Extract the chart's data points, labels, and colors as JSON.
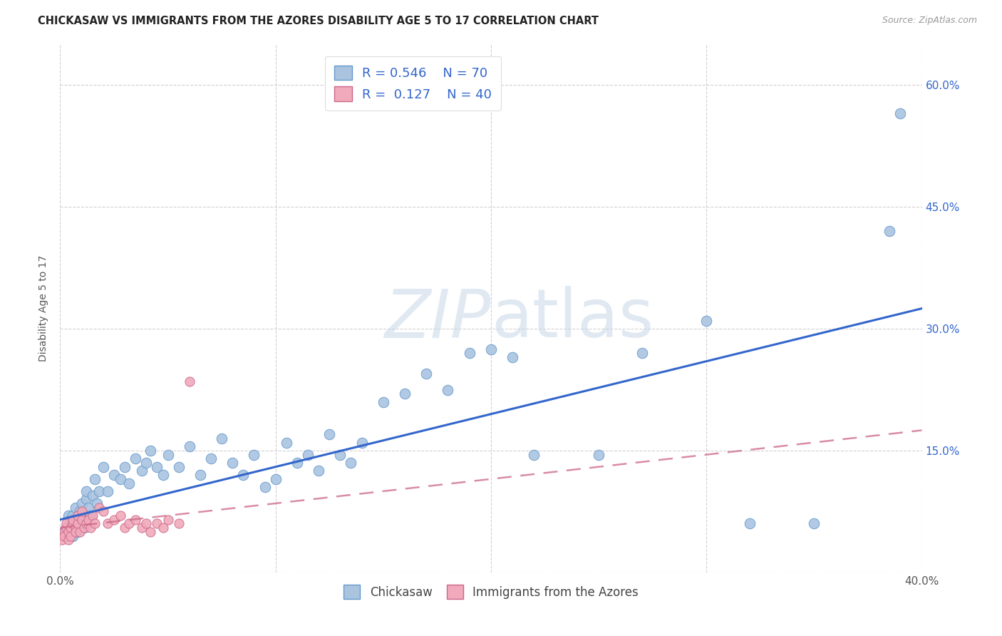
{
  "title": "CHICKASAW VS IMMIGRANTS FROM THE AZORES DISABILITY AGE 5 TO 17 CORRELATION CHART",
  "source": "Source: ZipAtlas.com",
  "ylabel": "Disability Age 5 to 17",
  "xmin": 0.0,
  "xmax": 0.4,
  "ymin": 0.0,
  "ymax": 0.65,
  "yticks": [
    0.0,
    0.15,
    0.3,
    0.45,
    0.6
  ],
  "ytick_labels": [
    "",
    "15.0%",
    "30.0%",
    "45.0%",
    "60.0%"
  ],
  "grid_color": "#cccccc",
  "series": [
    {
      "name": "Chickasaw",
      "color": "#aac4e0",
      "edge_color": "#6699cc",
      "R": 0.546,
      "N": 70,
      "trend_color": "#3366cc",
      "trend_style": "solid",
      "trend_x0": 0.0,
      "trend_y0": 0.065,
      "trend_x1": 0.4,
      "trend_y1": 0.325
    },
    {
      "name": "Immigrants from the Azores",
      "color": "#f0aabb",
      "edge_color": "#cc6688",
      "R": 0.127,
      "N": 40,
      "trend_color": "#cc6688",
      "trend_style": "dashed",
      "trend_x0": 0.0,
      "trend_y0": 0.055,
      "trend_x1": 0.4,
      "trend_y1": 0.175
    }
  ],
  "chickasaw_x": [
    0.002,
    0.003,
    0.004,
    0.004,
    0.005,
    0.005,
    0.006,
    0.006,
    0.007,
    0.007,
    0.008,
    0.009,
    0.009,
    0.01,
    0.01,
    0.011,
    0.012,
    0.012,
    0.013,
    0.014,
    0.015,
    0.016,
    0.017,
    0.018,
    0.02,
    0.022,
    0.025,
    0.028,
    0.03,
    0.032,
    0.035,
    0.038,
    0.04,
    0.042,
    0.045,
    0.048,
    0.05,
    0.055,
    0.06,
    0.065,
    0.07,
    0.075,
    0.08,
    0.085,
    0.09,
    0.095,
    0.1,
    0.105,
    0.11,
    0.115,
    0.12,
    0.125,
    0.13,
    0.135,
    0.14,
    0.15,
    0.16,
    0.17,
    0.18,
    0.19,
    0.2,
    0.21,
    0.22,
    0.25,
    0.27,
    0.3,
    0.32,
    0.35,
    0.385,
    0.39
  ],
  "chickasaw_y": [
    0.05,
    0.055,
    0.045,
    0.07,
    0.055,
    0.065,
    0.045,
    0.07,
    0.06,
    0.08,
    0.05,
    0.06,
    0.075,
    0.065,
    0.085,
    0.055,
    0.09,
    0.1,
    0.08,
    0.07,
    0.095,
    0.115,
    0.085,
    0.1,
    0.13,
    0.1,
    0.12,
    0.115,
    0.13,
    0.11,
    0.14,
    0.125,
    0.135,
    0.15,
    0.13,
    0.12,
    0.145,
    0.13,
    0.155,
    0.12,
    0.14,
    0.165,
    0.135,
    0.12,
    0.145,
    0.105,
    0.115,
    0.16,
    0.135,
    0.145,
    0.125,
    0.17,
    0.145,
    0.135,
    0.16,
    0.21,
    0.22,
    0.245,
    0.225,
    0.27,
    0.275,
    0.265,
    0.145,
    0.145,
    0.27,
    0.31,
    0.06,
    0.06,
    0.42,
    0.565
  ],
  "azores_x": [
    0.001,
    0.002,
    0.002,
    0.003,
    0.003,
    0.004,
    0.004,
    0.005,
    0.005,
    0.006,
    0.006,
    0.007,
    0.007,
    0.008,
    0.008,
    0.009,
    0.01,
    0.01,
    0.011,
    0.012,
    0.013,
    0.014,
    0.015,
    0.016,
    0.018,
    0.02,
    0.022,
    0.025,
    0.028,
    0.03,
    0.032,
    0.035,
    0.038,
    0.04,
    0.042,
    0.045,
    0.048,
    0.05,
    0.055,
    0.06
  ],
  "azores_y": [
    0.04,
    0.05,
    0.045,
    0.055,
    0.06,
    0.04,
    0.05,
    0.055,
    0.045,
    0.06,
    0.065,
    0.055,
    0.05,
    0.06,
    0.07,
    0.05,
    0.065,
    0.075,
    0.055,
    0.06,
    0.065,
    0.055,
    0.07,
    0.06,
    0.08,
    0.075,
    0.06,
    0.065,
    0.07,
    0.055,
    0.06,
    0.065,
    0.055,
    0.06,
    0.05,
    0.06,
    0.055,
    0.065,
    0.06,
    0.235
  ],
  "background_color": "#ffffff"
}
